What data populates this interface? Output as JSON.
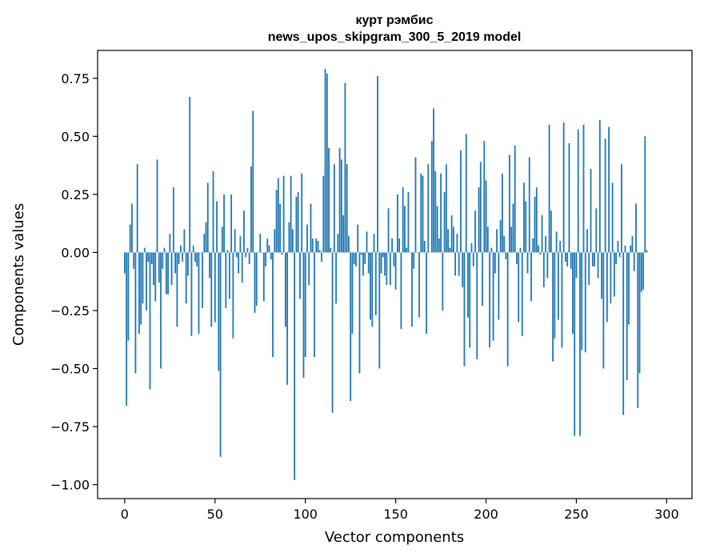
{
  "chart_data": {
    "type": "bar",
    "title_line1": "курт рэмбис",
    "title_line2": "news_upos_skipgram_300_5_2019 model",
    "xlabel": "Vector components",
    "ylabel": "Components values",
    "xlim": [
      -15,
      314
    ],
    "ylim": [
      -1.06,
      0.87
    ],
    "xticks": [
      0,
      50,
      100,
      150,
      200,
      250,
      300
    ],
    "xtick_labels": [
      "0",
      "50",
      "100",
      "150",
      "200",
      "250",
      "300"
    ],
    "yticks": [
      -1.0,
      -0.75,
      -0.5,
      -0.25,
      0.0,
      0.25,
      0.5,
      0.75
    ],
    "ytick_labels": [
      "−1.00",
      "−0.75",
      "−0.50",
      "−0.25",
      "0.00",
      "0.25",
      "0.50",
      "0.75"
    ],
    "bar_color": "#1f77b4",
    "values": [
      -0.09,
      -0.66,
      -0.38,
      0.12,
      0.21,
      -0.07,
      -0.52,
      0.38,
      -0.35,
      -0.31,
      -0.22,
      0.02,
      -0.25,
      -0.04,
      -0.59,
      -0.05,
      -0.14,
      -0.21,
      0.4,
      -0.13,
      -0.5,
      -0.07,
      0.02,
      -0.18,
      -0.18,
      0.08,
      -0.14,
      0.28,
      -0.09,
      -0.32,
      -0.05,
      0.03,
      -0.04,
      0.1,
      -0.22,
      -0.1,
      0.67,
      -0.36,
      0.03,
      -0.04,
      -0.06,
      -0.35,
      0.0,
      -0.24,
      0.08,
      0.13,
      0.3,
      -0.11,
      -0.32,
      0.35,
      -0.3,
      0.22,
      -0.51,
      -0.88,
      0.11,
      0.25,
      -0.24,
      0.01,
      -0.2,
      0.25,
      -0.37,
      0.1,
      -0.02,
      -0.09,
      0.07,
      -0.13,
      0.18,
      -0.02,
      0.02,
      -0.05,
      0.37,
      0.61,
      -0.26,
      -0.23,
      0.0,
      0.08,
      0.0,
      -0.21,
      -0.06,
      0.06,
      0.03,
      -0.03,
      -0.45,
      0.1,
      0.27,
      0.32,
      0.21,
      -0.01,
      0.33,
      -0.32,
      -0.57,
      0.13,
      0.33,
      0.1,
      -0.98,
      0.24,
      0.26,
      -0.2,
      0.34,
      -0.54,
      -0.45,
      0.12,
      -0.14,
      0.21,
      0.06,
      -0.45,
      0.06,
      0.05,
      0.01,
      -0.04,
      0.33,
      0.79,
      0.77,
      0.45,
      0.02,
      -0.69,
      0.38,
      -0.22,
      0.08,
      0.45,
      0.4,
      0.16,
      0.73,
      0.38,
      0.07,
      -0.64,
      -0.35,
      -0.05,
      -0.06,
      0.12,
      -0.52,
      -0.01,
      -0.1,
      -0.05,
      0.09,
      -0.09,
      -0.29,
      -0.32,
      0.08,
      -0.27,
      0.76,
      -0.5,
      -0.09,
      -0.02,
      -0.1,
      -0.14,
      0.19,
      -0.14,
      0.06,
      -0.06,
      -0.16,
      0.25,
      0.06,
      -0.33,
      0.28,
      0.2,
      0.02,
      0.26,
      0.0,
      -0.32,
      -0.07,
      0.41,
      0.0,
      -0.28,
      0.34,
      0.33,
      0.05,
      -0.35,
      0.38,
      0.0,
      0.48,
      0.62,
      0.35,
      0.2,
      0.06,
      0.34,
      -0.25,
      0.26,
      0.38,
      0.1,
      0.02,
      0.16,
      0.11,
      -0.1,
      0.08,
      -0.1,
      0.44,
      -0.15,
      -0.49,
      0.51,
      -0.28,
      -0.41,
      0.04,
      -0.06,
      0.18,
      -0.46,
      0.28,
      0.39,
      -0.23,
      0.48,
      0.31,
      0.11,
      -0.41,
      0.02,
      -0.38,
      -0.09,
      0.1,
      -0.29,
      0.14,
      0.34,
      0.07,
      -0.03,
      -0.49,
      0.42,
      0.11,
      0.21,
      0.46,
      -0.05,
      -0.3,
      0.02,
      -0.36,
      0.3,
      0.22,
      -0.09,
      0.41,
      -0.21,
      0.06,
      0.24,
      0.28,
      0.03,
      -0.01,
      0.16,
      -0.15,
      0.07,
      -0.11,
      0.55,
      0.18,
      -0.47,
      -0.37,
      0.09,
      -0.29,
      0.05,
      -0.41,
      0.56,
      -0.04,
      -0.06,
      0.47,
      -0.07,
      -0.35,
      -0.79,
      -0.11,
      0.53,
      -0.79,
      -0.42,
      0.55,
      -0.43,
      0.1,
      -0.14,
      0.36,
      -0.06,
      -0.06,
      0.19,
      -0.11,
      0.57,
      -0.2,
      -0.5,
      0.49,
      -0.3,
      0.54,
      -0.22,
      0.3,
      -0.19,
      -0.05,
      0.05,
      -0.02,
      0.38,
      -0.7,
      0.03,
      -0.55,
      -0.31,
      0.03,
      0.07,
      -0.08,
      0.21,
      -0.67,
      -0.52,
      -0.17,
      -0.16,
      0.5,
      0.01
    ]
  }
}
